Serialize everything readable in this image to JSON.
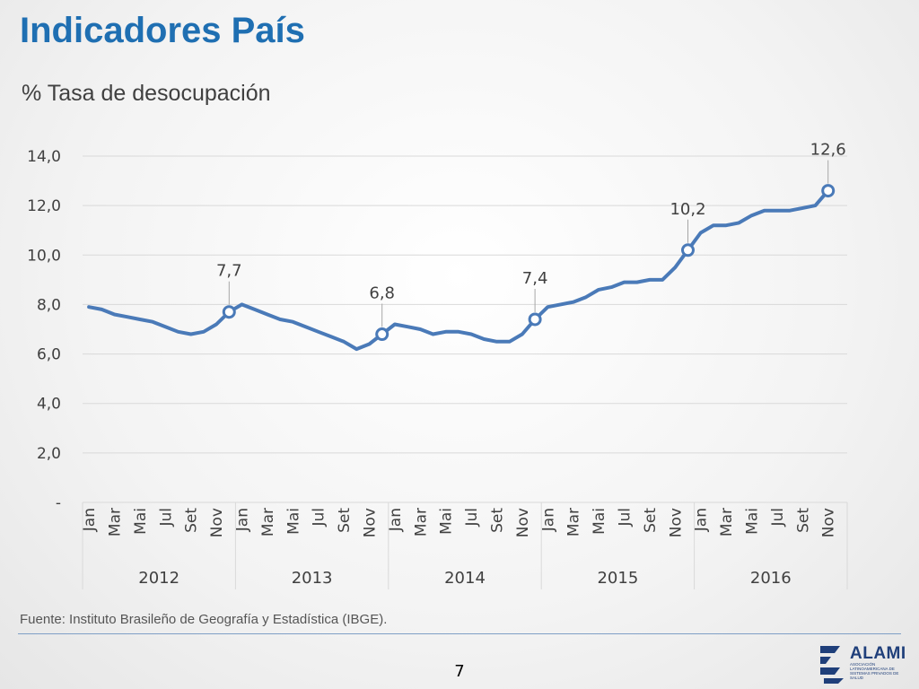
{
  "title": "Indicadores País",
  "subtitle": "% Tasa de desocupación",
  "source": "Fuente: Instituto Brasileño de Geografía y Estadística (IBGE).",
  "page_number": "7",
  "logo": {
    "name": "ALAMI",
    "tagline": "ASOCIACIÓN LATINOAMERICANA DE SISTEMAS PRIVADOS DE SALUD"
  },
  "colors": {
    "title": "#1f6fb2",
    "line": "#4a7ab8",
    "grid": "#d9d9d9",
    "text": "#404040"
  },
  "chart_data": {
    "type": "line",
    "ylim": [
      0,
      14
    ],
    "y_ticks": [
      {
        "value": 0,
        "label": "-"
      },
      {
        "value": 2,
        "label": "2,0"
      },
      {
        "value": 4,
        "label": "4,0"
      },
      {
        "value": 6,
        "label": "6,0"
      },
      {
        "value": 8,
        "label": "8,0"
      },
      {
        "value": 10,
        "label": "10,0"
      },
      {
        "value": 12,
        "label": "12,0"
      },
      {
        "value": 14,
        "label": "14,0"
      }
    ],
    "grid": true,
    "month_labels": [
      "Jan",
      "",
      "Mar",
      "",
      "Mai",
      "",
      "Jul",
      "",
      "Set",
      "",
      "Nov",
      ""
    ],
    "years": [
      "2012",
      "2013",
      "2014",
      "2015",
      "2016"
    ],
    "months_per_year": 12,
    "series": [
      {
        "values": [
          7.9,
          7.8,
          7.6,
          7.5,
          7.4,
          7.3,
          7.1,
          6.9,
          6.8,
          6.9,
          7.2,
          7.7,
          8.0,
          7.8,
          7.6,
          7.4,
          7.3,
          7.1,
          6.9,
          6.7,
          6.5,
          6.2,
          6.4,
          6.8,
          7.2,
          7.1,
          7.0,
          6.8,
          6.9,
          6.9,
          6.8,
          6.6,
          6.5,
          6.5,
          6.8,
          7.4,
          7.9,
          8.0,
          8.1,
          8.3,
          8.6,
          8.7,
          8.9,
          8.9,
          9.0,
          9.0,
          9.5,
          10.2,
          10.9,
          11.2,
          11.2,
          11.3,
          11.6,
          11.8,
          11.8,
          11.8,
          11.9,
          12.0,
          12.6
        ]
      }
    ],
    "data_labels": [
      {
        "index": 11,
        "label": "7,7"
      },
      {
        "index": 23,
        "label": "6,8"
      },
      {
        "index": 35,
        "label": "7,4"
      },
      {
        "index": 47,
        "label": "10,2"
      },
      {
        "index": 58,
        "label": "12,6"
      }
    ]
  }
}
